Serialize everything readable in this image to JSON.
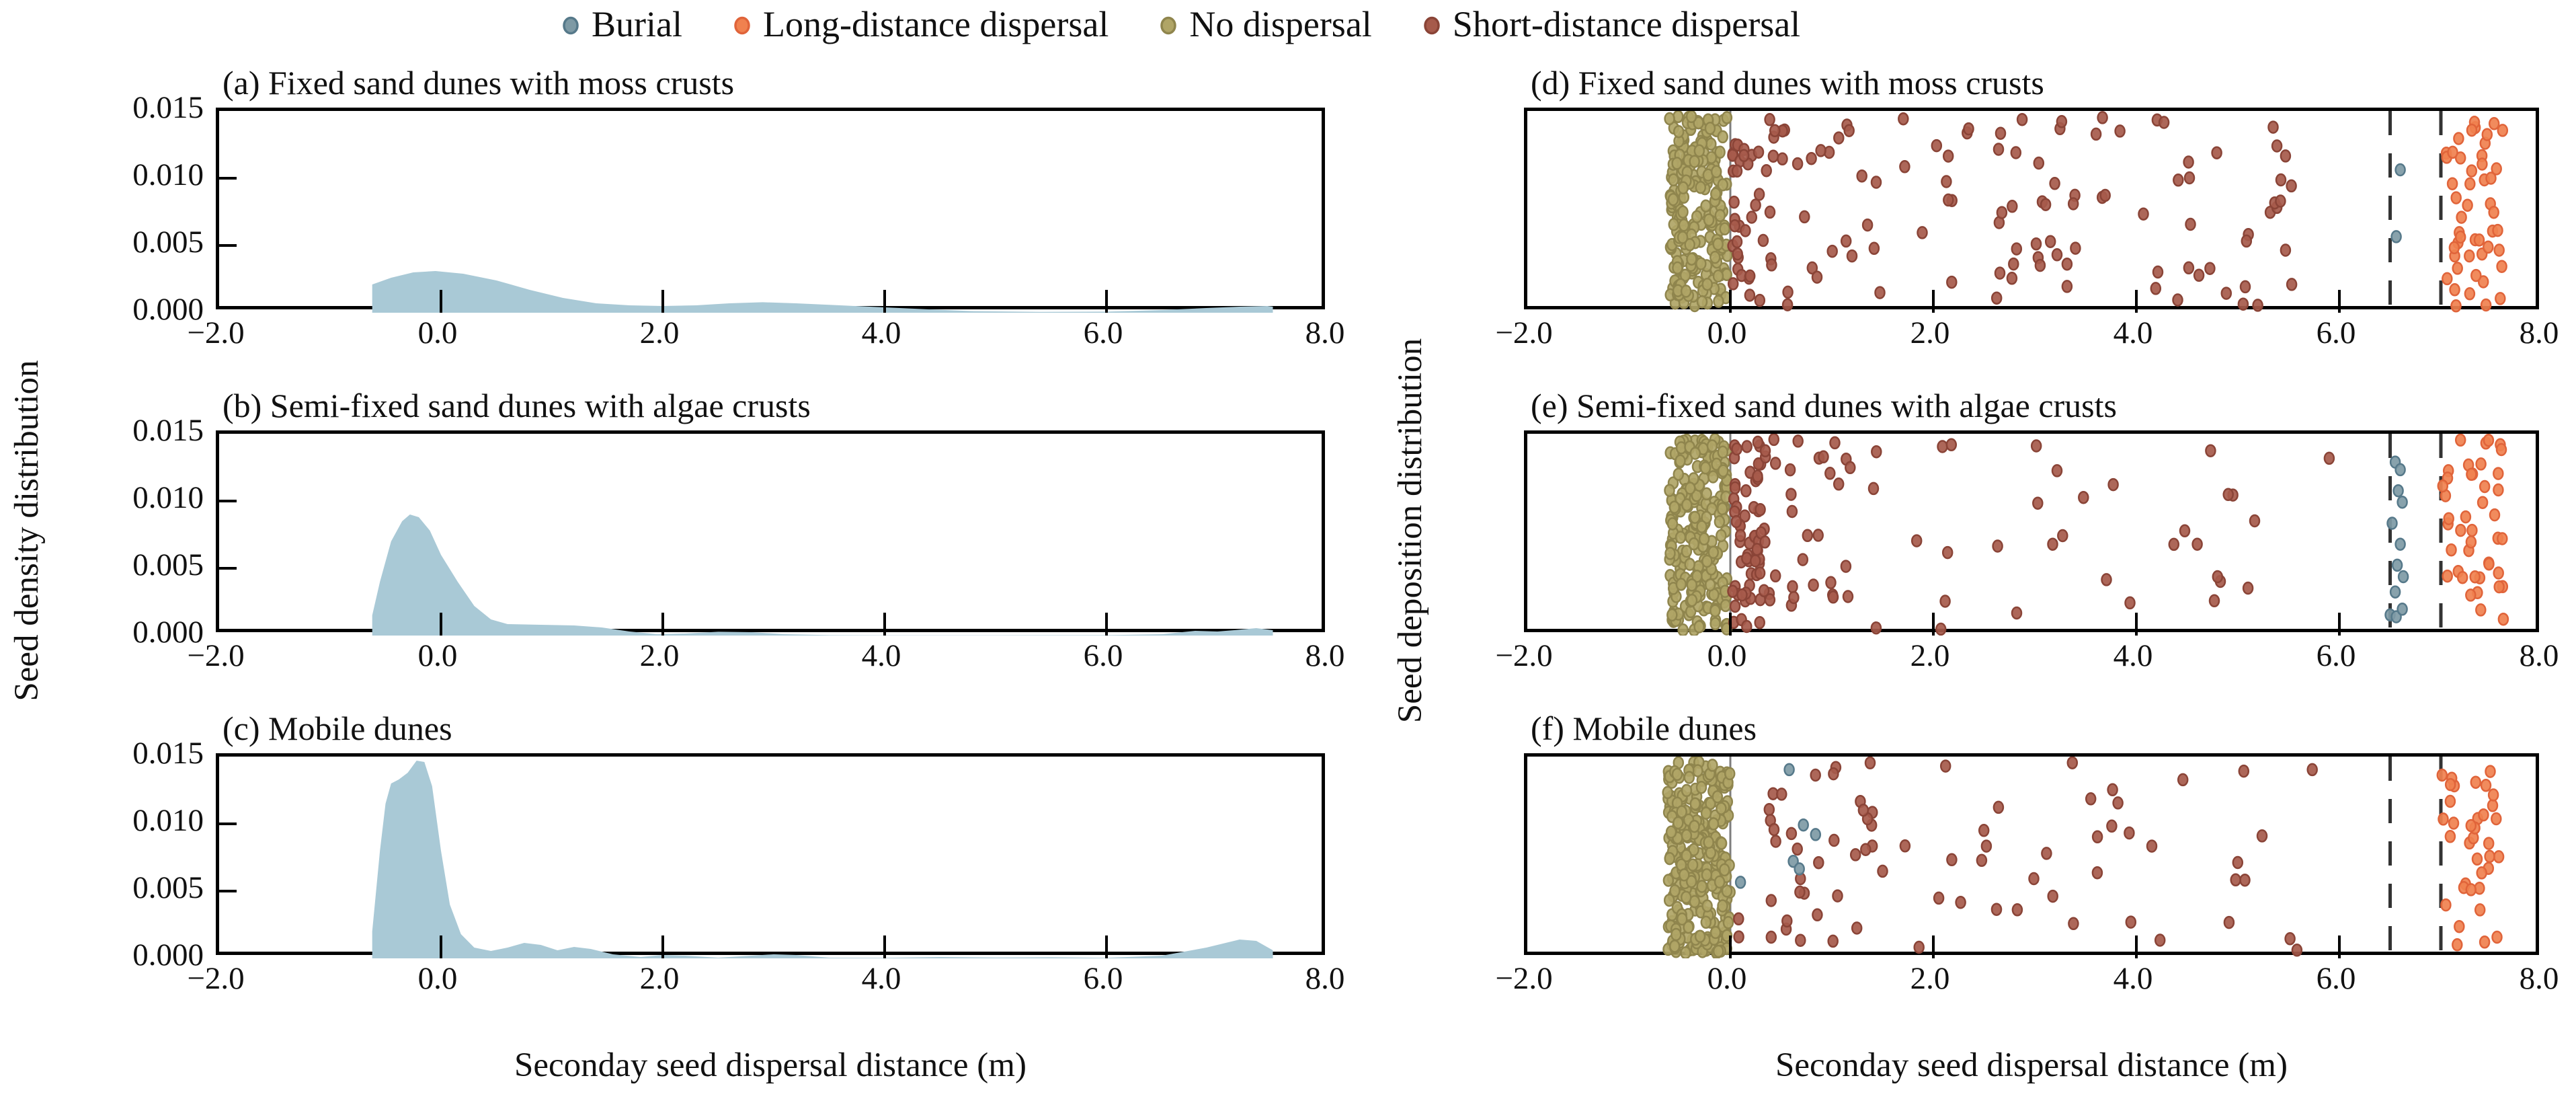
{
  "legend": {
    "items": [
      {
        "label": "Burial",
        "fill": "#7e9aa5",
        "stroke": "#56798a"
      },
      {
        "label": "Long-distance dispersal",
        "fill": "#f0814f",
        "stroke": "#e0643a"
      },
      {
        "label": "No dispersal",
        "fill": "#b0a566",
        "stroke": "#8f854d"
      },
      {
        "label": "Short-distance dispersal",
        "fill": "#a65a4b",
        "stroke": "#8a4437"
      }
    ]
  },
  "labels": {
    "x_axis_left": "Seconday seed dispersal distance (m)",
    "x_axis_right": "Seconday seed dispersal distance (m)",
    "y_axis_left": "Seed density distribution",
    "y_axis_right": "Seed deposition distribution"
  },
  "axes": {
    "x_tick_labels": [
      "−2.0",
      "0.0",
      "2.0",
      "4.0",
      "6.0",
      "8.0"
    ],
    "x_tick_values": [
      -2,
      0,
      2,
      4,
      6,
      8
    ],
    "x_inner_tick_values": [
      0,
      2,
      4,
      6
    ],
    "y_tick_labels": [
      "0.015",
      "0.010",
      "0.005",
      "0.000"
    ],
    "y_inner_tick_values": [
      0.005,
      0.01
    ],
    "x_range": [
      -2,
      8
    ],
    "density_range": [
      0,
      0.015
    ]
  },
  "style_colors": {
    "kde_fill": "#a9c9d6",
    "spine": "#000000",
    "zero_line": "#7d7d7d",
    "dashed_line": "#333333",
    "categories": {
      "burial": {
        "fill": "#7e9aa5",
        "stroke": "#56798a"
      },
      "long_distance": {
        "fill": "#f0814f",
        "stroke": "#e0643a"
      },
      "no_dispersal": {
        "fill": "#b0a566",
        "stroke": "#8f854d"
      },
      "short_distance": {
        "fill": "#a65a4b",
        "stroke": "#8a4437"
      }
    }
  },
  "chart_data": {
    "type": [
      "area",
      "strip"
    ],
    "x_range": [
      -2,
      8
    ],
    "density_panels": [
      {
        "id": "a",
        "title": "(a) Fixed sand dunes with moss crusts",
        "curve": [
          [
            -0.62,
            0
          ],
          [
            -0.62,
            0.0021
          ],
          [
            -0.45,
            0.0026
          ],
          [
            -0.25,
            0.003
          ],
          [
            -0.05,
            0.0031
          ],
          [
            0.2,
            0.0029
          ],
          [
            0.5,
            0.0024
          ],
          [
            0.8,
            0.0017
          ],
          [
            1.1,
            0.0011
          ],
          [
            1.4,
            0.0007
          ],
          [
            1.7,
            0.00055
          ],
          [
            2.0,
            0.0005
          ],
          [
            2.3,
            0.00055
          ],
          [
            2.6,
            0.0007
          ],
          [
            2.9,
            0.00078
          ],
          [
            3.2,
            0.0007
          ],
          [
            3.6,
            0.00055
          ],
          [
            4.0,
            0.0004
          ],
          [
            4.4,
            0.00025
          ],
          [
            4.8,
            0.00012
          ],
          [
            5.4,
            6e-05
          ],
          [
            6.0,
            8e-05
          ],
          [
            6.5,
            0.0002
          ],
          [
            6.9,
            0.00035
          ],
          [
            7.2,
            0.00045
          ],
          [
            7.45,
            0.0005
          ],
          [
            7.5,
            0.00045
          ],
          [
            7.5,
            0
          ]
        ]
      },
      {
        "id": "b",
        "title": "(b) Semi-fixed sand dunes with algae crusts",
        "curve": [
          [
            -0.62,
            0
          ],
          [
            -0.62,
            0.0015
          ],
          [
            -0.55,
            0.004
          ],
          [
            -0.45,
            0.007
          ],
          [
            -0.35,
            0.0085
          ],
          [
            -0.28,
            0.009
          ],
          [
            -0.2,
            0.0088
          ],
          [
            -0.1,
            0.0078
          ],
          [
            0.0,
            0.006
          ],
          [
            0.15,
            0.004
          ],
          [
            0.3,
            0.0022
          ],
          [
            0.45,
            0.0012
          ],
          [
            0.6,
            0.00085
          ],
          [
            0.9,
            0.0008
          ],
          [
            1.2,
            0.00075
          ],
          [
            1.45,
            0.0006
          ],
          [
            1.7,
            0.0003
          ],
          [
            1.95,
            0.0001
          ],
          [
            2.2,
            0.00015
          ],
          [
            2.5,
            0.00028
          ],
          [
            2.8,
            0.00025
          ],
          [
            3.1,
            0.0001
          ],
          [
            3.5,
            3e-05
          ],
          [
            4.0,
            2e-05
          ],
          [
            5.0,
            2e-05
          ],
          [
            6.0,
            3e-05
          ],
          [
            6.5,
            0.0001
          ],
          [
            6.8,
            0.00035
          ],
          [
            7.0,
            0.0003
          ],
          [
            7.15,
            0.0004
          ],
          [
            7.35,
            0.00055
          ],
          [
            7.5,
            0.0004
          ],
          [
            7.5,
            0
          ]
        ]
      },
      {
        "id": "c",
        "title": "(c) Mobile dunes",
        "curve": [
          [
            -0.62,
            0
          ],
          [
            -0.62,
            0.002
          ],
          [
            -0.55,
            0.008
          ],
          [
            -0.5,
            0.0115
          ],
          [
            -0.45,
            0.013
          ],
          [
            -0.38,
            0.0133
          ],
          [
            -0.3,
            0.0138
          ],
          [
            -0.22,
            0.0147
          ],
          [
            -0.15,
            0.0146
          ],
          [
            -0.08,
            0.0128
          ],
          [
            0.0,
            0.008
          ],
          [
            0.08,
            0.004
          ],
          [
            0.18,
            0.0018
          ],
          [
            0.3,
            0.0008
          ],
          [
            0.45,
            0.00055
          ],
          [
            0.6,
            0.0008
          ],
          [
            0.75,
            0.00115
          ],
          [
            0.9,
            0.001
          ],
          [
            1.05,
            0.0006
          ],
          [
            1.2,
            0.00085
          ],
          [
            1.35,
            0.0007
          ],
          [
            1.55,
            0.0003
          ],
          [
            1.8,
            0.0001
          ],
          [
            2.0,
            0.00025
          ],
          [
            2.2,
            0.0002
          ],
          [
            2.5,
            5e-05
          ],
          [
            3.0,
            0.0003
          ],
          [
            3.2,
            0.00025
          ],
          [
            3.5,
            5e-05
          ],
          [
            4.0,
            4e-05
          ],
          [
            4.5,
            0.0001
          ],
          [
            5.0,
            6e-05
          ],
          [
            5.5,
            8e-05
          ],
          [
            6.0,
            4e-05
          ],
          [
            6.5,
            0.0002
          ],
          [
            6.9,
            0.0008
          ],
          [
            7.2,
            0.0014
          ],
          [
            7.35,
            0.0013
          ],
          [
            7.5,
            0.0006
          ],
          [
            7.5,
            0
          ]
        ]
      }
    ],
    "strip_panels": [
      {
        "id": "d",
        "title": "(d) Fixed sand dunes with moss crusts",
        "ref_line_x": 0,
        "dashed_lines_x": [
          6.5,
          7.0
        ],
        "clusters": [
          {
            "category": "no_dispersal",
            "count": 230,
            "x_min": -0.6,
            "x_max": -0.03,
            "bias": "uniform",
            "seed": 11
          },
          {
            "category": "short_distance",
            "count": 45,
            "x_min": 0.02,
            "x_max": 0.6,
            "bias": "left",
            "seed": 21
          },
          {
            "category": "short_distance",
            "count": 75,
            "x_min": 0.6,
            "x_max": 5.6,
            "bias": "uniform",
            "seed": 22
          },
          {
            "category": "short_distance",
            "count": 18,
            "x_min": 2.6,
            "x_max": 3.4,
            "bias": "uniform",
            "seed": 23
          },
          {
            "category": "long_distance",
            "count": 48,
            "x_min": 7.05,
            "x_max": 7.62,
            "bias": "uniform",
            "seed": 31
          }
        ],
        "explicit_points": {
          "burial": [
            [
              6.6,
              0.28
            ],
            [
              6.56,
              0.63
            ]
          ]
        }
      },
      {
        "id": "e",
        "title": "(e) Semi-fixed sand dunes with algae crusts",
        "ref_line_x": 0,
        "dashed_lines_x": [
          6.5,
          7.0
        ],
        "clusters": [
          {
            "category": "no_dispersal",
            "count": 240,
            "x_min": -0.6,
            "x_max": -0.03,
            "bias": "uniform",
            "seed": 12
          },
          {
            "category": "short_distance",
            "count": 58,
            "x_min": 0.02,
            "x_max": 0.3,
            "bias": "uniform",
            "seed": 24
          },
          {
            "category": "short_distance",
            "count": 62,
            "x_min": 0.3,
            "x_max": 5.3,
            "bias": "left",
            "seed": 25
          },
          {
            "category": "long_distance",
            "count": 42,
            "x_min": 7.0,
            "x_max": 7.62,
            "bias": "uniform",
            "seed": 32
          }
        ],
        "explicit_points": {
          "burial": [
            [
              6.55,
              0.12
            ],
            [
              6.6,
              0.16
            ],
            [
              6.58,
              0.27
            ],
            [
              6.62,
              0.33
            ],
            [
              6.52,
              0.44
            ],
            [
              6.6,
              0.55
            ],
            [
              6.57,
              0.66
            ],
            [
              6.63,
              0.72
            ],
            [
              6.55,
              0.8
            ],
            [
              6.5,
              0.92
            ],
            [
              6.56,
              0.93
            ],
            [
              6.62,
              0.89
            ]
          ],
          "short_distance": [
            [
              5.9,
              0.1
            ],
            [
              4.6,
              0.55
            ],
            [
              4.8,
              0.72
            ],
            [
              5.1,
              0.78
            ]
          ]
        }
      },
      {
        "id": "f",
        "title": "(f) Mobile dunes",
        "ref_line_x": 0,
        "dashed_lines_x": [
          6.5,
          7.0
        ],
        "clusters": [
          {
            "category": "no_dispersal",
            "count": 300,
            "x_min": -0.62,
            "x_max": 0.0,
            "bias": "uniform",
            "seed": 13
          },
          {
            "category": "short_distance",
            "count": 52,
            "x_min": 0.05,
            "x_max": 5.8,
            "bias": "left",
            "seed": 26
          },
          {
            "category": "short_distance",
            "count": 22,
            "x_min": 0.4,
            "x_max": 1.4,
            "bias": "uniform",
            "seed": 27
          },
          {
            "category": "long_distance",
            "count": 36,
            "x_min": 7.0,
            "x_max": 7.58,
            "bias": "uniform",
            "seed": 33
          }
        ],
        "explicit_points": {
          "burial": [
            [
              0.58,
              0.04
            ],
            [
              0.72,
              0.33
            ],
            [
              0.84,
              0.38
            ],
            [
              0.62,
              0.52
            ],
            [
              0.68,
              0.56
            ],
            [
              0.1,
              0.63
            ]
          ]
        }
      }
    ]
  }
}
